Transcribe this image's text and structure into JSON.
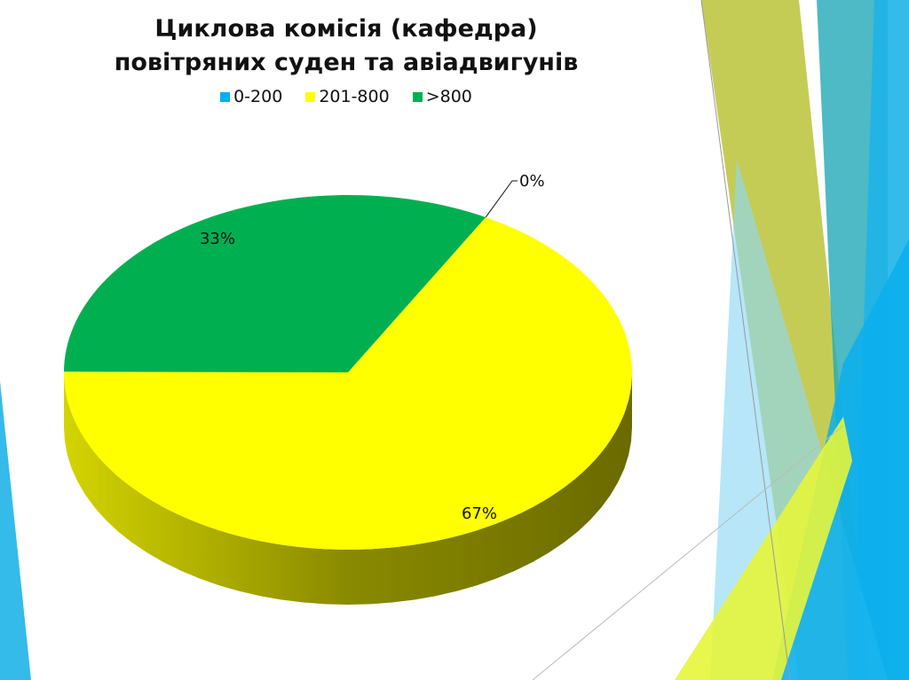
{
  "chart_data": {
    "type": "pie",
    "style": "3d",
    "title": "Циклова комісія (кафедра) повітряних суден та авіадвигунів",
    "title_lines": [
      "Циклова комісія (кафедра)",
      "повітряних суден та авіадвигунів"
    ],
    "legend_position": "top",
    "categories": [
      "0-200",
      "201-800",
      ">800"
    ],
    "values": [
      0,
      67,
      33
    ],
    "data_labels": [
      "0%",
      "67%",
      "33%"
    ],
    "colors": [
      "#00b0f0",
      "#ffff00",
      "#00b050"
    ]
  }
}
